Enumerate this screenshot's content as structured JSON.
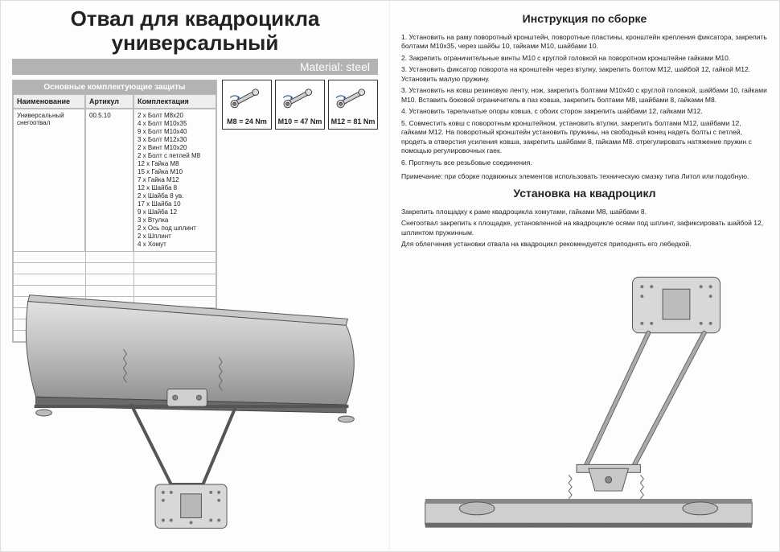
{
  "title_line1": "Отвал для квадроцикла",
  "title_line2": "универсальный",
  "material_label": "Material: steel",
  "parts": {
    "header": "Основные комплектующие защиты",
    "cols": {
      "name": "Наименование",
      "art": "Артикул",
      "comp": "Комплектация"
    },
    "row": {
      "name": "Универсальный снегоотвал",
      "art": "00.5.10",
      "comp": [
        "2 х Болт М8х20",
        "4 х Болт М10х35",
        "9 х Болт М10х40",
        "3 х Болт М12х30",
        "2 х Винт М10х20",
        "2 х Болт с петлей М8",
        "12 х Гайка М8",
        "15 х Гайка М10",
        "7 х Гайка М12",
        "12 х Шайба 8",
        "2 х Шайба 8 ув.",
        "17 х Шайба 10",
        "9 х Шайба 12",
        "3 х Втулка",
        "2 х Ось под шплинт",
        "2 х Шплинт",
        "4 х Хомут"
      ]
    },
    "empty_row_count": 8
  },
  "torque": [
    {
      "label": "M8 = 24 Nm"
    },
    {
      "label": "M10 = 47 Nm"
    },
    {
      "label": "M12 = 81 Nm"
    }
  ],
  "right": {
    "h1": "Инструкция по сборке",
    "steps": [
      "1. Установить на раму поворотный кронштейн, поворотные пластины, кронштейн крепления фиксатора, закрепить болтами М10х35, через шайбы 10, гайками М10, шайбами 10.",
      "2. Закрепить ограничительные винты М10 с круглой головкой на поворотном кронштейне гайками М10.",
      "3. Установить фиксатор поворота на кронштейн через втулку, закрепить болтом М12, шайбой 12, гайкой М12. Установить малую пружину.",
      "3. Установить на ковш резиновую ленту, нож, закрепить болтами М10х40 с круглой головкой, шайбами 10, гайками М10. Вставить боковой ограничитель в паз ковша, закрепить болтами М8, шайбами 8, гайками М8.",
      "4. Установить тарельчатые опоры ковша, с обоих сторон закрепить шайбами 12, гайками М12.",
      "5. Совместить ковш с поворотным кронштейном, установить втулки, закрепить болтами М12, шайбами 12, гайками М12. На поворотный кронштейн установить пружины, на свободный конец надеть болты с петлей, продеть в отверстия усиления ковша, закрепить шайбами 8, гайками М8. отрегулировать натяжение пружин с помощью регулировочных гаек.",
      "6. Протянуть все резьбовые соединения."
    ],
    "note": "Примечание: при сборке подвижных элементов использовать техническую смазку типа Литол или подобную.",
    "h2": "Установка на квадроцикл",
    "install": [
      "Закрепить площадку к раме квадроцикла хомутами, гайками М8, шайбами 8.",
      "Снегоотвал закрепить к площадке, установленной на квадроцикле осями под шплинт, зафиксировать шайбой 12, шплинтом пружинным.",
      "Для облегчения установки отвала на квадроцикл рекомендуется приподнять его лебедкой."
    ]
  },
  "colors": {
    "bar_bg": "#b3b3b3",
    "bar_fg": "#ffffff",
    "border": "#bbbbbb",
    "metal_light": "#d0d0d0",
    "metal_mid": "#a8a8a8",
    "metal_dark": "#7a7a7a",
    "line": "#444444"
  }
}
